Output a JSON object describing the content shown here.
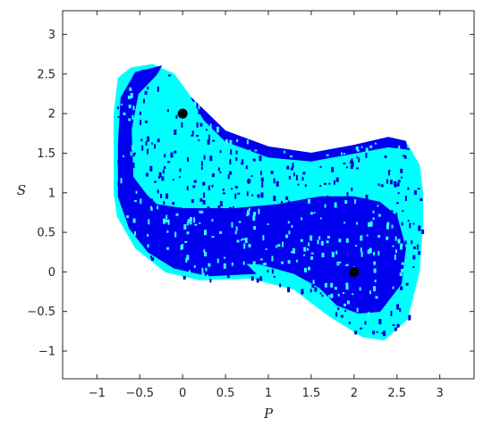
{
  "chart_data": {
    "type": "scatter",
    "title": "",
    "xlabel": "P",
    "ylabel": "S",
    "xlim": [
      -1.4,
      3.4
    ],
    "ylim": [
      -1.35,
      3.3
    ],
    "x_ticks": [
      -1,
      -0.5,
      0,
      0.5,
      1,
      1.5,
      2,
      2.5,
      3
    ],
    "y_ticks": [
      -1,
      -0.5,
      0,
      0.5,
      1,
      1.5,
      2,
      2.5,
      3
    ],
    "x_tick_labels": [
      "−1",
      "−0.5",
      "0",
      "0.5",
      "1",
      "1.5",
      "2",
      "2.5",
      "3"
    ],
    "y_tick_labels": [
      "−1",
      "−0.5",
      "0",
      "0.5",
      "1",
      "1.5",
      "2",
      "2.5",
      "3"
    ],
    "grid": false,
    "colors": {
      "outer_basin": "#00ffff",
      "inner_basin": "#0000ee",
      "speckle_dark": "#0000cc",
      "speckle_light": "#33ffff",
      "attractor": "#000000",
      "axes": "#262626"
    },
    "attractors": [
      {
        "x": 0,
        "y": 2
      },
      {
        "x": 2,
        "y": 0
      }
    ],
    "regions": [
      {
        "name": "cyan-outer-ring",
        "color": "#00ffff",
        "boundary": [
          [
            2.1,
            -0.82
          ],
          [
            2.35,
            -0.86
          ],
          [
            2.62,
            -0.6
          ],
          [
            2.76,
            0.0
          ],
          [
            2.8,
            0.6
          ],
          [
            2.8,
            1.0
          ],
          [
            2.76,
            1.35
          ],
          [
            2.6,
            1.65
          ],
          [
            2.4,
            1.7
          ],
          [
            2.0,
            1.6
          ],
          [
            1.5,
            1.5
          ],
          [
            1.0,
            1.58
          ],
          [
            0.5,
            1.78
          ],
          [
            0.1,
            2.2
          ],
          [
            -0.1,
            2.5
          ],
          [
            -0.35,
            2.62
          ],
          [
            -0.6,
            2.58
          ],
          [
            -0.75,
            2.45
          ],
          [
            -0.8,
            2.0
          ],
          [
            -0.8,
            1.0
          ],
          [
            -0.76,
            0.7
          ],
          [
            -0.55,
            0.3
          ],
          [
            -0.2,
            0.0
          ],
          [
            0.2,
            -0.1
          ],
          [
            0.8,
            -0.08
          ],
          [
            1.3,
            -0.22
          ],
          [
            1.7,
            -0.55
          ],
          [
            2.1,
            -0.82
          ]
        ]
      },
      {
        "name": "blue-outer-ring",
        "color": "#0000ee",
        "boundary": [
          [
            -0.25,
            2.6
          ],
          [
            -0.55,
            2.52
          ],
          [
            -0.72,
            2.2
          ],
          [
            -0.75,
            1.6
          ],
          [
            -0.75,
            0.95
          ],
          [
            -0.62,
            0.55
          ],
          [
            -0.4,
            0.25
          ],
          [
            -0.1,
            0.05
          ],
          [
            0.3,
            -0.05
          ],
          [
            0.85,
            -0.02
          ],
          [
            0.55,
            0.3
          ],
          [
            0.1,
            0.5
          ],
          [
            -0.3,
            0.8
          ],
          [
            -0.58,
            1.2
          ],
          [
            -0.6,
            1.8
          ],
          [
            -0.52,
            2.25
          ],
          [
            -0.3,
            2.5
          ],
          [
            -0.25,
            2.6
          ]
        ]
      },
      {
        "name": "blue-outer-top",
        "color": "#0000ee",
        "boundary": [
          [
            0.1,
            2.2
          ],
          [
            0.5,
            1.78
          ],
          [
            1.0,
            1.58
          ],
          [
            1.5,
            1.5
          ],
          [
            2.0,
            1.6
          ],
          [
            2.4,
            1.7
          ],
          [
            2.6,
            1.65
          ],
          [
            2.62,
            1.55
          ],
          [
            2.4,
            1.58
          ],
          [
            2.0,
            1.5
          ],
          [
            1.5,
            1.4
          ],
          [
            1.0,
            1.45
          ],
          [
            0.5,
            1.65
          ],
          [
            0.25,
            1.92
          ],
          [
            0.1,
            2.2
          ]
        ]
      },
      {
        "name": "blue-inner-lobe",
        "color": "#0000ee",
        "boundary": [
          [
            2.3,
            -0.5
          ],
          [
            2.55,
            -0.15
          ],
          [
            2.6,
            0.3
          ],
          [
            2.5,
            0.7
          ],
          [
            2.3,
            0.88
          ],
          [
            2.0,
            0.95
          ],
          [
            1.6,
            0.95
          ],
          [
            1.1,
            0.85
          ],
          [
            0.6,
            0.8
          ],
          [
            0.0,
            0.8
          ],
          [
            -0.3,
            0.85
          ],
          [
            -0.45,
            1.0
          ],
          [
            -0.55,
            0.7
          ],
          [
            -0.35,
            0.4
          ],
          [
            -0.05,
            0.22
          ],
          [
            0.4,
            0.12
          ],
          [
            0.9,
            0.1
          ],
          [
            1.3,
            -0.02
          ],
          [
            1.6,
            -0.2
          ],
          [
            1.8,
            -0.42
          ],
          [
            2.05,
            -0.52
          ],
          [
            2.3,
            -0.5
          ]
        ]
      }
    ]
  }
}
